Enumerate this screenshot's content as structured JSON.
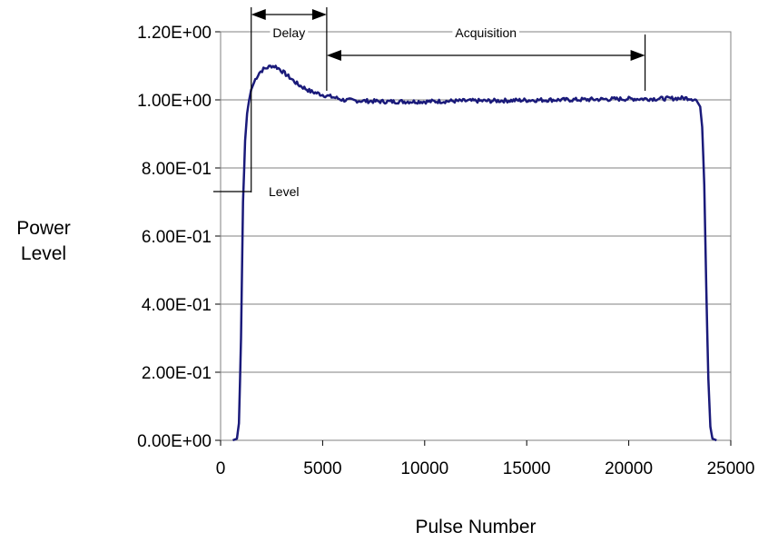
{
  "chart_data": {
    "type": "line",
    "title": "",
    "xlabel": "Pulse Number",
    "ylabel_lines": [
      "Power",
      "Level"
    ],
    "xlim": [
      0,
      25000
    ],
    "ylim": [
      0,
      1.2
    ],
    "x_ticks": [
      0,
      5000,
      10000,
      15000,
      20000,
      25000
    ],
    "x_tick_labels": [
      "0",
      "5000",
      "10000",
      "15000",
      "20000",
      "25000"
    ],
    "y_ticks": [
      0,
      0.2,
      0.4,
      0.6,
      0.8,
      1.0,
      1.2
    ],
    "y_tick_labels": [
      "0.00E+00",
      "2.00E-01",
      "4.00E-01",
      "6.00E-01",
      "8.00E-01",
      "1.00E+00",
      "1.20E+00"
    ],
    "grid": "horizontal",
    "line_color": "#1a1a7a",
    "series": [
      {
        "x": [
          600,
          800,
          900,
          1000,
          1100,
          1200,
          1300,
          1400,
          1500,
          1700,
          1900,
          2100,
          2300,
          2500,
          2700,
          2900,
          3200,
          3500,
          3800,
          4100,
          4400,
          4700,
          5000,
          5500,
          6000,
          6500,
          7000,
          8000,
          9000,
          10000,
          11000,
          12000,
          13000,
          14000,
          15000,
          16000,
          17000,
          18000,
          19000,
          20000,
          21000,
          22000,
          22600,
          23000,
          23300,
          23500,
          23600,
          23700,
          23800,
          23900,
          24000,
          24100,
          24300
        ],
        "y": [
          0.0,
          0.005,
          0.05,
          0.3,
          0.7,
          0.88,
          0.96,
          1.0,
          1.03,
          1.06,
          1.08,
          1.09,
          1.095,
          1.1,
          1.098,
          1.09,
          1.075,
          1.06,
          1.045,
          1.035,
          1.025,
          1.02,
          1.015,
          1.008,
          1.0,
          0.998,
          0.997,
          0.995,
          0.995,
          0.995,
          0.996,
          0.997,
          0.997,
          0.998,
          0.999,
          1.0,
          1.0,
          1.001,
          1.002,
          1.003,
          1.003,
          1.004,
          1.005,
          1.005,
          1.0,
          0.98,
          0.92,
          0.75,
          0.45,
          0.18,
          0.04,
          0.005,
          0.0
        ]
      }
    ],
    "annotations": {
      "delay": {
        "label": "Delay",
        "x_start": 1500,
        "x_end": 5200
      },
      "acquisition": {
        "label": "Acquisition",
        "x_start": 5200,
        "x_end": 20800
      },
      "level": {
        "label": "Level",
        "y": 0.73
      }
    }
  }
}
